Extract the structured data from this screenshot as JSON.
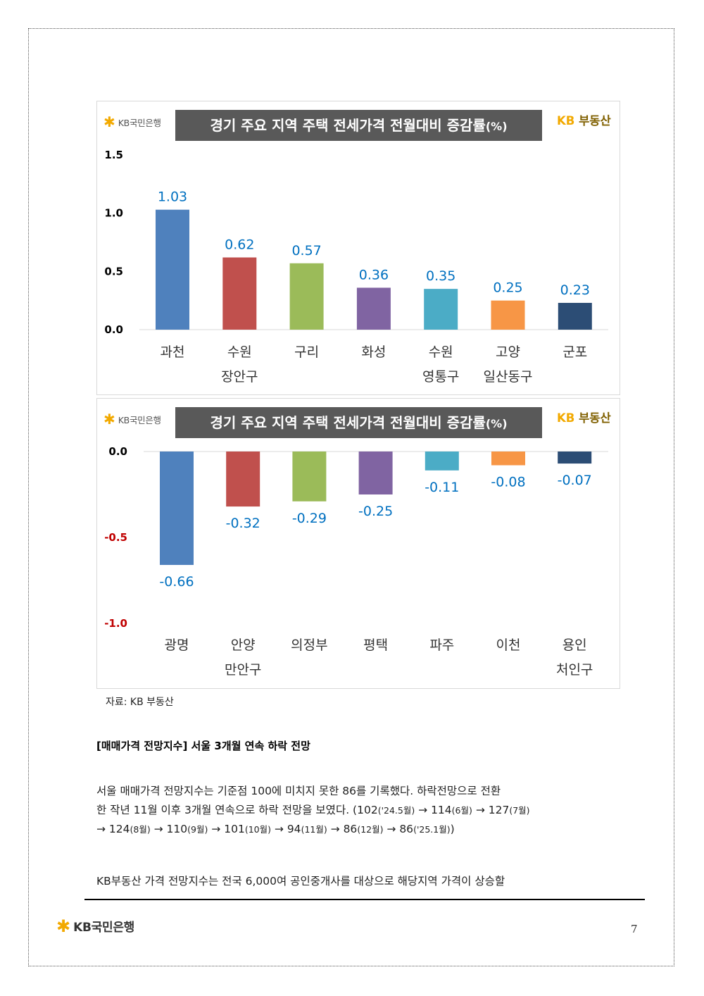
{
  "chart_data": [
    {
      "type": "bar",
      "title": "경기 주요 지역 주택 전세가격 전월대비 증감률",
      "title_unit": "(%)",
      "bank_logo": "KB국민은행",
      "realty_logo_kb": "KB",
      "realty_logo_rest": "부동산",
      "categories": [
        [
          "과천"
        ],
        [
          "수원",
          "장안구"
        ],
        [
          "구리"
        ],
        [
          "화성"
        ],
        [
          "수원",
          "영통구"
        ],
        [
          "고양",
          "일산동구"
        ],
        [
          "군포"
        ]
      ],
      "values": [
        1.03,
        0.62,
        0.57,
        0.36,
        0.35,
        0.25,
        0.23
      ],
      "value_labels": [
        "1.03",
        "0.62",
        "0.57",
        "0.36",
        "0.35",
        "0.25",
        "0.23"
      ],
      "colors": [
        "#4f81bd",
        "#c0504d",
        "#9bbb59",
        "#8064a2",
        "#4bacc6",
        "#f79646",
        "#2c4d75"
      ],
      "yticks": [
        "1.5",
        "1.0",
        "0.5",
        "0.0"
      ],
      "ytick_values": [
        1.5,
        1.0,
        0.5,
        0.0
      ],
      "ylim": [
        0,
        1.5
      ],
      "value_label_color": "#0070c0",
      "grid": false
    },
    {
      "type": "bar",
      "title": "경기 주요 지역 주택 전세가격 전월대비 증감률",
      "title_unit": "(%)",
      "bank_logo": "KB국민은행",
      "realty_logo_kb": "KB",
      "realty_logo_rest": "부동산",
      "categories": [
        [
          "광명"
        ],
        [
          "안양",
          "만안구"
        ],
        [
          "의정부"
        ],
        [
          "평택"
        ],
        [
          "파주"
        ],
        [
          "이천"
        ],
        [
          "용인",
          "처인구"
        ]
      ],
      "values": [
        -0.66,
        -0.32,
        -0.29,
        -0.25,
        -0.11,
        -0.08,
        -0.07
      ],
      "value_labels": [
        "-0.66",
        "-0.32",
        "-0.29",
        "-0.25",
        "-0.11",
        "-0.08",
        "-0.07"
      ],
      "colors": [
        "#4f81bd",
        "#c0504d",
        "#9bbb59",
        "#8064a2",
        "#4bacc6",
        "#f79646",
        "#2c4d75"
      ],
      "yticks": [
        "0.0",
        "-0.5",
        "-1.0"
      ],
      "ytick_values": [
        0.0,
        -0.5,
        -1.0
      ],
      "ytick_colors": [
        "#000000",
        "#c00000",
        "#c00000"
      ],
      "ylim": [
        -1.0,
        0
      ],
      "value_label_color": "#0070c0",
      "grid": false
    }
  ],
  "source": "자료: KB 부동산",
  "section_heading": "[매매가격 전망지수] 서울 3개월 연속 하락 전망",
  "para1": {
    "line1": "서울 매매가격 전망지수는 기준점 100에 미치지 못한 86를 기록했다. 하락전망으로 전환",
    "line2_text": "한 작년 11월 이후 3개월 연속으로 하락 전망을 보였다. (102",
    "l2_s1": "('24.5월)",
    "l2_t2": " → 114",
    "l2_s2": "(6월)",
    "l2_t3": " → 127",
    "l2_s3": "(7월)",
    "l3_t1": "→ 124",
    "l3_s1": "(8월)",
    "l3_t2": " → 110",
    "l3_s2": "(9월)",
    "l3_t3": " → 101",
    "l3_s3": "(10월)",
    "l3_t4": " → 94",
    "l3_s4": "(11월)",
    "l3_t5": " → 86",
    "l3_s5": "(12월)",
    "l3_t6": " → 86",
    "l3_s6": "('25.1월)",
    "l3_t7": ")"
  },
  "para2": "KB부동산 가격 전망지수는 전국 6,000여 공인중개사를 대상으로 해당지역 가격이 상승할",
  "footer": {
    "bank_name": "KB국민은행",
    "page_number": "7"
  }
}
